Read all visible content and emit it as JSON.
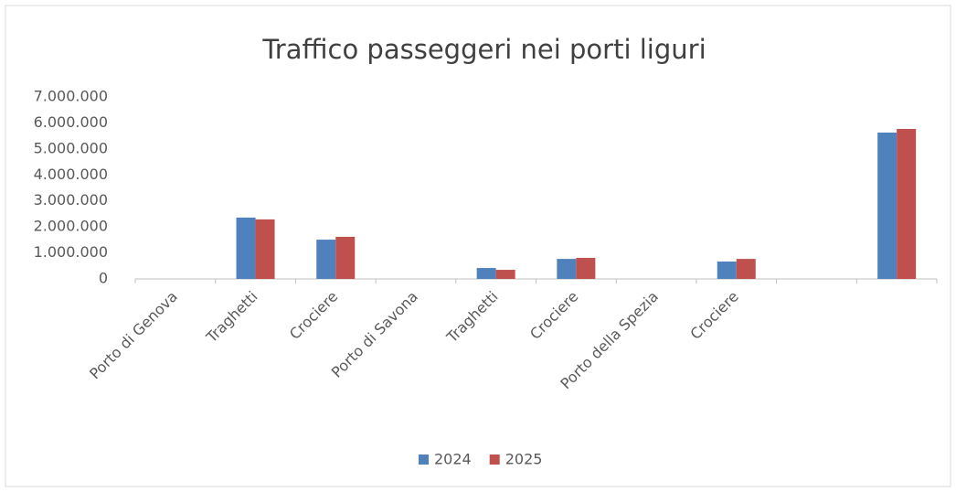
{
  "chart_data": {
    "type": "bar",
    "title": "Traffico passeggeri nei porti liguri",
    "categories": [
      "Porto di Genova",
      "Traghetti",
      "Crociere",
      "Porto di Savona",
      "Traghetti",
      "Crociere",
      "Porto della Spezia",
      "Crociere",
      null,
      null
    ],
    "series": [
      {
        "name": "2024",
        "color": "#4f81bd",
        "values": [
          null,
          2360000,
          1510000,
          null,
          420000,
          770000,
          null,
          670000,
          null,
          5630000
        ]
      },
      {
        "name": "2025",
        "color": "#c0504d",
        "values": [
          null,
          2290000,
          1620000,
          null,
          350000,
          810000,
          null,
          770000,
          null,
          5770000
        ]
      }
    ],
    "ylim": [
      0,
      7000000
    ],
    "yticks": [
      0,
      {
        "value": 1000000,
        "label": "1.000.000"
      },
      {
        "value": 2000000,
        "label": "2.000.000"
      },
      {
        "value": 3000000,
        "label": "3.000.000"
      },
      {
        "value": 4000000,
        "label": "4.000.000"
      },
      {
        "value": 5000000,
        "label": "5.000.000"
      },
      {
        "value": 6000000,
        "label": "6.000.000"
      },
      {
        "value": 7000000,
        "label": "7.000.000"
      }
    ],
    "grid": false,
    "legend": "bottom"
  }
}
